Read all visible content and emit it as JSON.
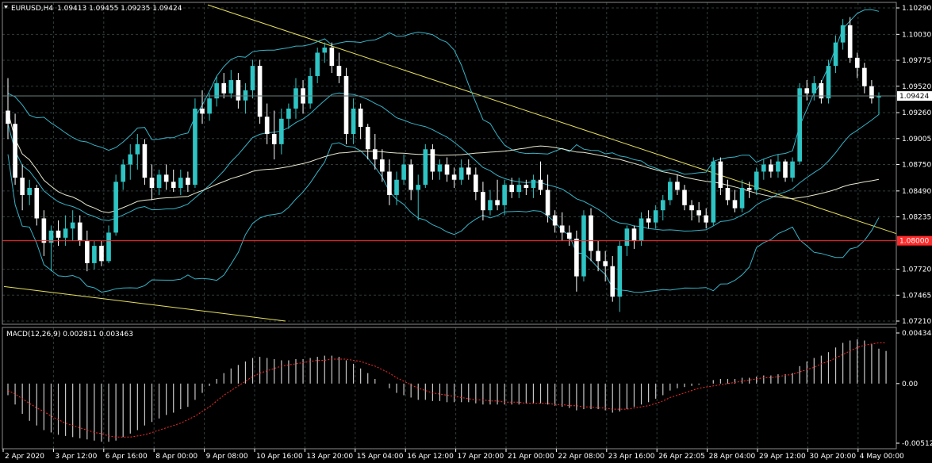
{
  "window": {
    "symbol_label": "EURUSD,H4",
    "ohlc_text": "1.09413 1.09455 1.09235 1.09424",
    "menu_icon": "triangle-down-icon"
  },
  "price_axis": {
    "min": 1.0721,
    "max": 1.1029,
    "ticks": [
      "1.10290",
      "1.10030",
      "1.09775",
      "1.09520",
      "1.09260",
      "1.09005",
      "1.08750",
      "1.08490",
      "1.08235",
      "1.07720",
      "1.07465",
      "1.07210"
    ],
    "current_price_label": "1.09424",
    "current_price": 1.09424,
    "level_label": "1.08000",
    "level_price": 1.08
  },
  "macd": {
    "label": "MACD(12,26,9) 0.002811 0.003463",
    "min": -0.005122,
    "max": 0.004348,
    "ticks": [
      "0.004348",
      "0.00",
      "-0.005122"
    ]
  },
  "time_axis": {
    "labels": [
      "2 Apr 2020",
      "3 Apr 12:00",
      "6 Apr 16:00",
      "8 Apr 00:00",
      "9 Apr 08:00",
      "10 Apr 16:00",
      "13 Apr 20:00",
      "15 Apr 04:00",
      "16 Apr 12:00",
      "17 Apr 20:00",
      "21 Apr 00:00",
      "22 Apr 08:00",
      "23 Apr 16:00",
      "26 Apr 22:05",
      "28 Apr 04:00",
      "29 Apr 12:00",
      "30 Apr 20:00",
      "4 May 00:00"
    ]
  },
  "colors": {
    "background": "#000000",
    "grid": "#2f3b3b",
    "bull_candle": "#2ec4c4",
    "bear_candle": "#ffffff",
    "bollinger": "#35b4c8",
    "moving_average": "#e8e8d0",
    "trendline": "#e6e05a",
    "level_line": "#ff2a2a",
    "macd_hist": "#c8c8c8",
    "macd_signal": "#ff2a2a"
  },
  "chart_data": {
    "type": "candlestick",
    "symbol": "EURUSD",
    "timeframe": "H4",
    "candles": [
      {
        "o": 1.0928,
        "h": 1.096,
        "l": 1.09,
        "c": 1.0915
      },
      {
        "o": 1.0915,
        "h": 1.0925,
        "l": 1.0855,
        "c": 1.0862
      },
      {
        "o": 1.0862,
        "h": 1.0875,
        "l": 1.083,
        "c": 1.0845
      },
      {
        "o": 1.0845,
        "h": 1.086,
        "l": 1.0835,
        "c": 1.0852
      },
      {
        "o": 1.0852,
        "h": 1.0855,
        "l": 1.0815,
        "c": 1.0822
      },
      {
        "o": 1.0822,
        "h": 1.083,
        "l": 1.0785,
        "c": 1.0798
      },
      {
        "o": 1.0798,
        "h": 1.0815,
        "l": 1.077,
        "c": 1.081
      },
      {
        "o": 1.081,
        "h": 1.082,
        "l": 1.0795,
        "c": 1.0803
      },
      {
        "o": 1.0803,
        "h": 1.0825,
        "l": 1.0795,
        "c": 1.0812
      },
      {
        "o": 1.0812,
        "h": 1.083,
        "l": 1.08,
        "c": 1.0818
      },
      {
        "o": 1.0818,
        "h": 1.0825,
        "l": 1.0795,
        "c": 1.08
      },
      {
        "o": 1.08,
        "h": 1.081,
        "l": 1.077,
        "c": 1.0778
      },
      {
        "o": 1.0778,
        "h": 1.08,
        "l": 1.0772,
        "c": 1.0795
      },
      {
        "o": 1.0795,
        "h": 1.08,
        "l": 1.0775,
        "c": 1.078
      },
      {
        "o": 1.078,
        "h": 1.0815,
        "l": 1.0778,
        "c": 1.0808
      },
      {
        "o": 1.0808,
        "h": 1.0865,
        "l": 1.0805,
        "c": 1.0858
      },
      {
        "o": 1.0858,
        "h": 1.088,
        "l": 1.085,
        "c": 1.0875
      },
      {
        "o": 1.0875,
        "h": 1.0895,
        "l": 1.086,
        "c": 1.0885
      },
      {
        "o": 1.0885,
        "h": 1.0905,
        "l": 1.087,
        "c": 1.0895
      },
      {
        "o": 1.0895,
        "h": 1.09,
        "l": 1.0855,
        "c": 1.0862
      },
      {
        "o": 1.0862,
        "h": 1.0875,
        "l": 1.084,
        "c": 1.0852
      },
      {
        "o": 1.0852,
        "h": 1.087,
        "l": 1.0845,
        "c": 1.0865
      },
      {
        "o": 1.0865,
        "h": 1.0875,
        "l": 1.085,
        "c": 1.0858
      },
      {
        "o": 1.0858,
        "h": 1.087,
        "l": 1.0848,
        "c": 1.0852
      },
      {
        "o": 1.0852,
        "h": 1.087,
        "l": 1.0845,
        "c": 1.0862
      },
      {
        "o": 1.0862,
        "h": 1.0868,
        "l": 1.0848,
        "c": 1.0855
      },
      {
        "o": 1.0855,
        "h": 1.094,
        "l": 1.0852,
        "c": 1.093
      },
      {
        "o": 1.093,
        "h": 1.0948,
        "l": 1.0915,
        "c": 1.0925
      },
      {
        "o": 1.0925,
        "h": 1.0945,
        "l": 1.0918,
        "c": 1.094
      },
      {
        "o": 1.094,
        "h": 1.0962,
        "l": 1.0932,
        "c": 1.0955
      },
      {
        "o": 1.0955,
        "h": 1.0965,
        "l": 1.094,
        "c": 1.0945
      },
      {
        "o": 1.0945,
        "h": 1.0968,
        "l": 1.094,
        "c": 1.0958
      },
      {
        "o": 1.0958,
        "h": 1.0965,
        "l": 1.093,
        "c": 1.0938
      },
      {
        "o": 1.0938,
        "h": 1.0955,
        "l": 1.0925,
        "c": 1.0948
      },
      {
        "o": 1.0948,
        "h": 1.0978,
        "l": 1.094,
        "c": 1.0972
      },
      {
        "o": 1.0972,
        "h": 1.0978,
        "l": 1.0915,
        "c": 1.0922
      },
      {
        "o": 1.0922,
        "h": 1.0935,
        "l": 1.0895,
        "c": 1.0905
      },
      {
        "o": 1.0905,
        "h": 1.0928,
        "l": 1.088,
        "c": 1.0895
      },
      {
        "o": 1.0895,
        "h": 1.093,
        "l": 1.0885,
        "c": 1.092
      },
      {
        "o": 1.092,
        "h": 1.0935,
        "l": 1.091,
        "c": 1.093
      },
      {
        "o": 1.093,
        "h": 1.096,
        "l": 1.092,
        "c": 1.095
      },
      {
        "o": 1.095,
        "h": 1.0958,
        "l": 1.0925,
        "c": 1.0935
      },
      {
        "o": 1.0935,
        "h": 1.097,
        "l": 1.093,
        "c": 1.0962
      },
      {
        "o": 1.0962,
        "h": 1.099,
        "l": 1.0955,
        "c": 1.0985
      },
      {
        "o": 1.0985,
        "h": 1.0995,
        "l": 1.0975,
        "c": 1.099
      },
      {
        "o": 1.099,
        "h": 1.0995,
        "l": 1.0965,
        "c": 1.0972
      },
      {
        "o": 1.0972,
        "h": 1.0985,
        "l": 1.0955,
        "c": 1.0962
      },
      {
        "o": 1.0962,
        "h": 1.097,
        "l": 1.0895,
        "c": 1.0905
      },
      {
        "o": 1.0905,
        "h": 1.094,
        "l": 1.0895,
        "c": 1.093
      },
      {
        "o": 1.093,
        "h": 1.0935,
        "l": 1.09,
        "c": 1.0912
      },
      {
        "o": 1.0912,
        "h": 1.0915,
        "l": 1.088,
        "c": 1.089
      },
      {
        "o": 1.089,
        "h": 1.0905,
        "l": 1.087,
        "c": 1.088
      },
      {
        "o": 1.088,
        "h": 1.089,
        "l": 1.0858,
        "c": 1.0868
      },
      {
        "o": 1.0868,
        "h": 1.088,
        "l": 1.0835,
        "c": 1.0845
      },
      {
        "o": 1.0845,
        "h": 1.0868,
        "l": 1.0835,
        "c": 1.086
      },
      {
        "o": 1.086,
        "h": 1.0885,
        "l": 1.0855,
        "c": 1.0875
      },
      {
        "o": 1.0875,
        "h": 1.088,
        "l": 1.084,
        "c": 1.085
      },
      {
        "o": 1.085,
        "h": 1.0865,
        "l": 1.082,
        "c": 1.0855
      },
      {
        "o": 1.0855,
        "h": 1.0895,
        "l": 1.0852,
        "c": 1.089
      },
      {
        "o": 1.089,
        "h": 1.0895,
        "l": 1.086,
        "c": 1.0868
      },
      {
        "o": 1.0868,
        "h": 1.088,
        "l": 1.086,
        "c": 1.0875
      },
      {
        "o": 1.0875,
        "h": 1.0882,
        "l": 1.0858,
        "c": 1.0865
      },
      {
        "o": 1.0865,
        "h": 1.0872,
        "l": 1.0852,
        "c": 1.086
      },
      {
        "o": 1.086,
        "h": 1.088,
        "l": 1.0855,
        "c": 1.0872
      },
      {
        "o": 1.0872,
        "h": 1.088,
        "l": 1.086,
        "c": 1.0865
      },
      {
        "o": 1.0865,
        "h": 1.0872,
        "l": 1.084,
        "c": 1.0848
      },
      {
        "o": 1.0848,
        "h": 1.0858,
        "l": 1.082,
        "c": 1.083
      },
      {
        "o": 1.083,
        "h": 1.085,
        "l": 1.0825,
        "c": 1.084
      },
      {
        "o": 1.084,
        "h": 1.086,
        "l": 1.083,
        "c": 1.0835
      },
      {
        "o": 1.0835,
        "h": 1.086,
        "l": 1.0825,
        "c": 1.0855
      },
      {
        "o": 1.0855,
        "h": 1.0862,
        "l": 1.0842,
        "c": 1.0848
      },
      {
        "o": 1.0848,
        "h": 1.0862,
        "l": 1.0842,
        "c": 1.0855
      },
      {
        "o": 1.0855,
        "h": 1.086,
        "l": 1.0845,
        "c": 1.0852
      },
      {
        "o": 1.0852,
        "h": 1.0865,
        "l": 1.0842,
        "c": 1.086
      },
      {
        "o": 1.086,
        "h": 1.0878,
        "l": 1.0845,
        "c": 1.085
      },
      {
        "o": 1.085,
        "h": 1.0865,
        "l": 1.0818,
        "c": 1.0825
      },
      {
        "o": 1.0825,
        "h": 1.083,
        "l": 1.0808,
        "c": 1.0815
      },
      {
        "o": 1.0815,
        "h": 1.0828,
        "l": 1.08,
        "c": 1.0808
      },
      {
        "o": 1.0808,
        "h": 1.0815,
        "l": 1.0795,
        "c": 1.0802
      },
      {
        "o": 1.0802,
        "h": 1.081,
        "l": 1.075,
        "c": 1.0765
      },
      {
        "o": 1.0765,
        "h": 1.083,
        "l": 1.076,
        "c": 1.0825
      },
      {
        "o": 1.0825,
        "h": 1.0832,
        "l": 1.078,
        "c": 1.079
      },
      {
        "o": 1.079,
        "h": 1.08,
        "l": 1.077,
        "c": 1.078
      },
      {
        "o": 1.078,
        "h": 1.079,
        "l": 1.076,
        "c": 1.0775
      },
      {
        "o": 1.0775,
        "h": 1.0785,
        "l": 1.074,
        "c": 1.0745
      },
      {
        "o": 1.0745,
        "h": 1.08,
        "l": 1.073,
        "c": 1.0795
      },
      {
        "o": 1.0795,
        "h": 1.0815,
        "l": 1.0785,
        "c": 1.0812
      },
      {
        "o": 1.0812,
        "h": 1.0815,
        "l": 1.0792,
        "c": 1.08
      },
      {
        "o": 1.08,
        "h": 1.0828,
        "l": 1.0795,
        "c": 1.0822
      },
      {
        "o": 1.0822,
        "h": 1.083,
        "l": 1.0812,
        "c": 1.0818
      },
      {
        "o": 1.0818,
        "h": 1.0835,
        "l": 1.0812,
        "c": 1.083
      },
      {
        "o": 1.083,
        "h": 1.0845,
        "l": 1.082,
        "c": 1.084
      },
      {
        "o": 1.084,
        "h": 1.0862,
        "l": 1.0835,
        "c": 1.0858
      },
      {
        "o": 1.0858,
        "h": 1.0865,
        "l": 1.0845,
        "c": 1.085
      },
      {
        "o": 1.085,
        "h": 1.0855,
        "l": 1.083,
        "c": 1.0835
      },
      {
        "o": 1.0835,
        "h": 1.084,
        "l": 1.082,
        "c": 1.083
      },
      {
        "o": 1.083,
        "h": 1.0838,
        "l": 1.0818,
        "c": 1.0825
      },
      {
        "o": 1.0825,
        "h": 1.0832,
        "l": 1.0812,
        "c": 1.0818
      },
      {
        "o": 1.0818,
        "h": 1.0882,
        "l": 1.0815,
        "c": 1.0878
      },
      {
        "o": 1.0878,
        "h": 1.0882,
        "l": 1.0845,
        "c": 1.0852
      },
      {
        "o": 1.0852,
        "h": 1.086,
        "l": 1.0835,
        "c": 1.084
      },
      {
        "o": 1.084,
        "h": 1.085,
        "l": 1.0828,
        "c": 1.0832
      },
      {
        "o": 1.0832,
        "h": 1.086,
        "l": 1.0828,
        "c": 1.0852
      },
      {
        "o": 1.0852,
        "h": 1.0858,
        "l": 1.0842,
        "c": 1.085
      },
      {
        "o": 1.085,
        "h": 1.0872,
        "l": 1.0845,
        "c": 1.0868
      },
      {
        "o": 1.0868,
        "h": 1.088,
        "l": 1.086,
        "c": 1.0875
      },
      {
        "o": 1.0875,
        "h": 1.088,
        "l": 1.0862,
        "c": 1.0868
      },
      {
        "o": 1.0868,
        "h": 1.0885,
        "l": 1.0862,
        "c": 1.0878
      },
      {
        "o": 1.0878,
        "h": 1.088,
        "l": 1.0858,
        "c": 1.0862
      },
      {
        "o": 1.0862,
        "h": 1.0882,
        "l": 1.0858,
        "c": 1.0878
      },
      {
        "o": 1.0878,
        "h": 1.0955,
        "l": 1.0875,
        "c": 1.095
      },
      {
        "o": 1.095,
        "h": 1.0958,
        "l": 1.0938,
        "c": 1.0945
      },
      {
        "o": 1.0945,
        "h": 1.0962,
        "l": 1.0938,
        "c": 1.0955
      },
      {
        "o": 1.0955,
        "h": 1.0958,
        "l": 1.0935,
        "c": 1.094
      },
      {
        "o": 1.094,
        "h": 1.0978,
        "l": 1.0935,
        "c": 1.0972
      },
      {
        "o": 1.0972,
        "h": 1.1002,
        "l": 1.0965,
        "c": 1.0995
      },
      {
        "o": 1.0995,
        "h": 1.1018,
        "l": 1.0988,
        "c": 1.1012
      },
      {
        "o": 1.1012,
        "h": 1.102,
        "l": 1.0975,
        "c": 1.098
      },
      {
        "o": 1.098,
        "h": 1.0985,
        "l": 1.096,
        "c": 1.097
      },
      {
        "o": 1.097,
        "h": 1.0975,
        "l": 1.0945,
        "c": 1.0952
      },
      {
        "o": 1.0952,
        "h": 1.0958,
        "l": 1.0935,
        "c": 1.094
      },
      {
        "o": 1.0941,
        "h": 1.0946,
        "l": 1.0924,
        "c": 1.0942
      }
    ],
    "macd_histogram": [
      -0.001,
      -0.0018,
      -0.0026,
      -0.0032,
      -0.0036,
      -0.004,
      -0.0042,
      -0.0044,
      -0.0045,
      -0.0046,
      -0.0047,
      -0.0048,
      -0.0049,
      -0.005,
      -0.005,
      -0.0049,
      -0.0046,
      -0.0043,
      -0.004,
      -0.0036,
      -0.0033,
      -0.003,
      -0.0027,
      -0.0025,
      -0.0022,
      -0.002,
      -0.0014,
      -0.0008,
      -0.0002,
      0.0004,
      0.0009,
      0.0013,
      0.0016,
      0.0019,
      0.0022,
      0.0023,
      0.0022,
      0.0021,
      0.002,
      0.002,
      0.0021,
      0.0021,
      0.0022,
      0.0023,
      0.0024,
      0.0024,
      0.0023,
      0.002,
      0.0017,
      0.0013,
      0.0009,
      0.0004,
      0.0,
      -0.0004,
      -0.0008,
      -0.001,
      -0.0012,
      -0.0014,
      -0.0014,
      -0.0015,
      -0.0015,
      -0.0016,
      -0.0016,
      -0.0016,
      -0.0016,
      -0.0017,
      -0.0018,
      -0.0018,
      -0.0018,
      -0.0018,
      -0.0018,
      -0.0018,
      -0.0017,
      -0.0017,
      -0.0017,
      -0.0018,
      -0.0019,
      -0.002,
      -0.0021,
      -0.0023,
      -0.0022,
      -0.0022,
      -0.0022,
      -0.0023,
      -0.0025,
      -0.0024,
      -0.0022,
      -0.002,
      -0.0018,
      -0.0016,
      -0.0013,
      -0.001,
      -0.0006,
      -0.0004,
      -0.0003,
      -0.0002,
      -0.0001,
      0.0,
      0.0003,
      0.0004,
      0.0004,
      0.0004,
      0.0005,
      0.0005,
      0.0006,
      0.0007,
      0.0007,
      0.0008,
      0.0008,
      0.0009,
      0.0015,
      0.0019,
      0.0022,
      0.0024,
      0.0027,
      0.0031,
      0.0035,
      0.0037,
      0.0038,
      0.0037,
      0.0034,
      0.003,
      0.0028
    ],
    "macd_signal": [
      -0.0006,
      -0.0009,
      -0.0013,
      -0.0017,
      -0.0021,
      -0.0024,
      -0.0028,
      -0.0031,
      -0.0034,
      -0.0036,
      -0.0038,
      -0.004,
      -0.0042,
      -0.0043,
      -0.0045,
      -0.0046,
      -0.0046,
      -0.0046,
      -0.0045,
      -0.0044,
      -0.0042,
      -0.004,
      -0.0038,
      -0.0036,
      -0.0034,
      -0.0031,
      -0.0028,
      -0.0024,
      -0.002,
      -0.0015,
      -0.001,
      -0.0006,
      -0.0002,
      0.0002,
      0.0006,
      0.0009,
      0.0011,
      0.0013,
      0.0015,
      0.0016,
      0.0017,
      0.0018,
      0.0019,
      0.002,
      0.002,
      0.0021,
      0.0021,
      0.0021,
      0.002,
      0.0019,
      0.0017,
      0.0015,
      0.0012,
      0.0009,
      0.0005,
      0.0002,
      -0.0001,
      -0.0004,
      -0.0006,
      -0.0008,
      -0.0009,
      -0.001,
      -0.0011,
      -0.0012,
      -0.0013,
      -0.0014,
      -0.0014,
      -0.0015,
      -0.0015,
      -0.0016,
      -0.0016,
      -0.0016,
      -0.0017,
      -0.0017,
      -0.0017,
      -0.0017,
      -0.0018,
      -0.0018,
      -0.0019,
      -0.0019,
      -0.002,
      -0.002,
      -0.0021,
      -0.0021,
      -0.0022,
      -0.0022,
      -0.0022,
      -0.0021,
      -0.002,
      -0.0019,
      -0.0017,
      -0.0015,
      -0.0012,
      -0.001,
      -0.0008,
      -0.0006,
      -0.0004,
      -0.0003,
      -0.0002,
      -0.0001,
      0.0,
      0.0001,
      0.0002,
      0.0003,
      0.0004,
      0.0005,
      0.0005,
      0.0006,
      0.0007,
      0.0008,
      0.001,
      0.0012,
      0.0014,
      0.0017,
      0.0019,
      0.0022,
      0.0025,
      0.0028,
      0.0031,
      0.0033,
      0.0034,
      0.0035,
      0.0035
    ]
  }
}
